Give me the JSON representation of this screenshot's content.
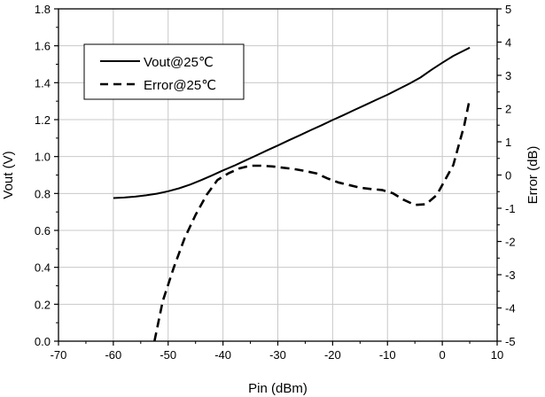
{
  "chart_data": {
    "type": "line",
    "xlabel": "Pin (dBm)",
    "ylabel": "Vout (V)",
    "y2label": "Error (dB)",
    "xlim": [
      -70,
      10
    ],
    "ylim": [
      0,
      1.8
    ],
    "y2lim": [
      -5,
      5
    ],
    "xticks": [
      -70,
      -60,
      -50,
      -40,
      -30,
      -20,
      -10,
      0,
      10
    ],
    "yticks": [
      0.0,
      0.2,
      0.4,
      0.6,
      0.8,
      1.0,
      1.2,
      1.4,
      1.6,
      1.8
    ],
    "y2ticks": [
      -5,
      -4,
      -3,
      -2,
      -1,
      0,
      1,
      2,
      3,
      4,
      5
    ],
    "xtick_labels": [
      "-70",
      "-60",
      "-50",
      "-40",
      "-30",
      "-20",
      "-10",
      "0",
      "10"
    ],
    "ytick_labels": [
      "0.0",
      "0.2",
      "0.4",
      "0.6",
      "0.8",
      "1.0",
      "1.2",
      "1.4",
      "1.6",
      "1.8"
    ],
    "y2tick_labels": [
      "-5",
      "-4",
      "-3",
      "-2",
      "-1",
      "0",
      "1",
      "2",
      "3",
      "4",
      "5"
    ],
    "grid": true,
    "legend_position": "top-left",
    "series": [
      {
        "name": "Vout@25℃",
        "axis": "left",
        "style": "solid",
        "color": "#000000",
        "x": [
          -60,
          -58,
          -56,
          -54,
          -52,
          -50,
          -48,
          -46,
          -44,
          -42,
          -40,
          -38,
          -36,
          -34,
          -32,
          -30,
          -28,
          -26,
          -24,
          -22,
          -20,
          -18,
          -16,
          -14,
          -12,
          -10,
          -8,
          -6,
          -4,
          -2,
          0,
          2,
          4,
          5
        ],
        "y": [
          0.775,
          0.778,
          0.783,
          0.79,
          0.799,
          0.812,
          0.828,
          0.848,
          0.872,
          0.898,
          0.925,
          0.95,
          0.978,
          1.005,
          1.033,
          1.06,
          1.088,
          1.115,
          1.143,
          1.17,
          1.198,
          1.225,
          1.253,
          1.28,
          1.308,
          1.335,
          1.365,
          1.395,
          1.428,
          1.47,
          1.508,
          1.545,
          1.575,
          1.59
        ]
      },
      {
        "name": "Error@25℃",
        "axis": "right",
        "style": "dashed",
        "color": "#000000",
        "x": [
          -52.5,
          -51,
          -49,
          -47,
          -45,
          -43,
          -41,
          -39,
          -37,
          -35,
          -33,
          -31,
          -29,
          -27,
          -25,
          -23,
          -21,
          -19,
          -17,
          -15,
          -13,
          -11,
          -9,
          -7,
          -5,
          -3,
          -1,
          0,
          2,
          3,
          4,
          5
        ],
        "y": [
          -5.0,
          -3.8,
          -2.8,
          -1.9,
          -1.2,
          -0.6,
          -0.15,
          0.05,
          0.2,
          0.28,
          0.28,
          0.26,
          0.22,
          0.18,
          0.12,
          0.05,
          -0.1,
          -0.22,
          -0.3,
          -0.38,
          -0.42,
          -0.45,
          -0.55,
          -0.75,
          -0.9,
          -0.88,
          -0.6,
          -0.3,
          0.3,
          0.9,
          1.5,
          2.3
        ]
      }
    ]
  }
}
